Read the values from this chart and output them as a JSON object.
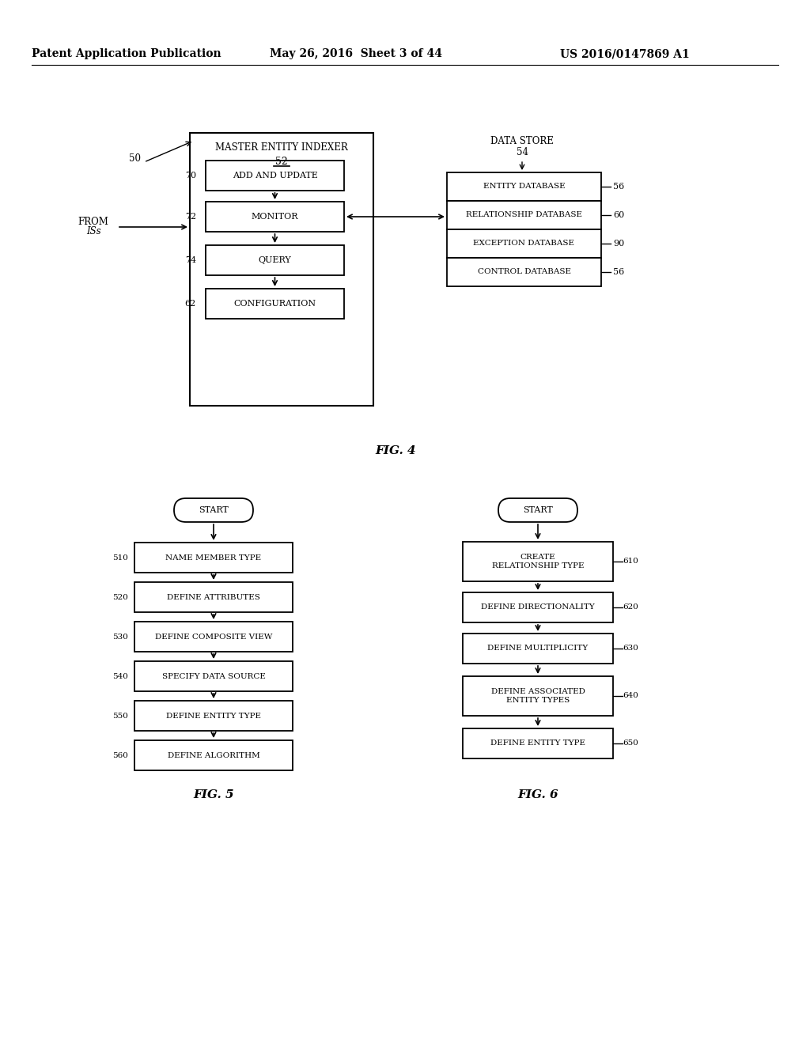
{
  "bg_color": "#ffffff",
  "header_left": "Patent Application Publication",
  "header_center": "May 26, 2016  Sheet 3 of 44",
  "header_right": "US 2016/0147869 A1"
}
